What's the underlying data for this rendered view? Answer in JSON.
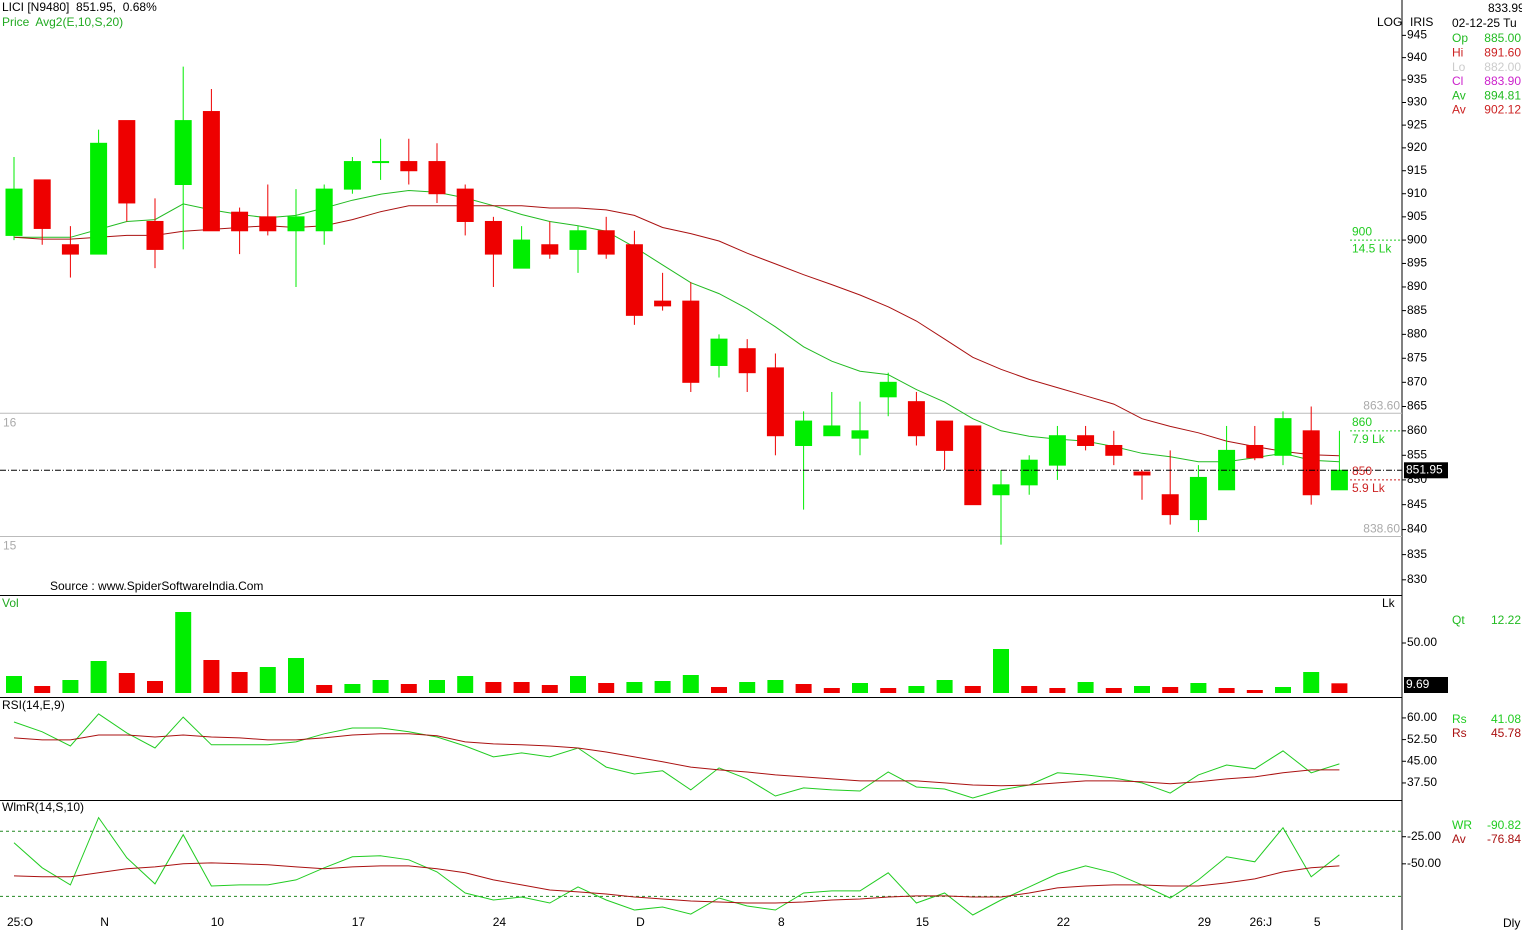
{
  "header": {
    "symbol_line": "LICI [N9480]  851.95,  0.68%",
    "indicator": "Price  Avg2(E,10,S,20)",
    "source": "Source : www.SpiderSoftwareIndia.Com",
    "scale_mode": "LOG",
    "feed": "IRIS",
    "cursor_price": "833.99",
    "cursor_date": "02-12-25 Tu",
    "period": "Dly"
  },
  "info": [
    {
      "label": "Op",
      "value": "885.00",
      "color": "#22bb22"
    },
    {
      "label": "Hi",
      "value": "891.60",
      "color": "#cc2222"
    },
    {
      "label": "Lo",
      "value": "882.00",
      "color": "#cccccc"
    },
    {
      "label": "Cl",
      "value": "883.90",
      "color": "#cc22cc"
    },
    {
      "label": "Av",
      "value": "894.81",
      "color": "#22bb22"
    },
    {
      "label": "Av",
      "value": "902.12",
      "color": "#cc2222"
    }
  ],
  "chart_data": [
    {
      "type": "candlestick",
      "log_scale": true,
      "ylim": [
        827,
        953
      ],
      "yticks": [
        830,
        835,
        840,
        845,
        850,
        855,
        860,
        865,
        870,
        875,
        880,
        885,
        890,
        895,
        900,
        905,
        910,
        915,
        920,
        925,
        930,
        935,
        940,
        945
      ],
      "categories": [
        "25:O",
        null,
        null,
        "N",
        null,
        null,
        null,
        "10",
        null,
        null,
        null,
        null,
        "17",
        null,
        null,
        null,
        null,
        "24",
        null,
        null,
        null,
        null,
        "D",
        null,
        null,
        null,
        null,
        "8",
        null,
        null,
        null,
        null,
        "15",
        null,
        null,
        null,
        null,
        "22",
        null,
        null,
        null,
        null,
        "29",
        null,
        "26:J",
        null,
        "5",
        null
      ],
      "open": [
        901,
        913,
        899,
        897,
        926,
        904,
        912,
        928,
        906,
        905,
        902,
        902,
        911,
        917,
        917,
        917,
        911,
        904,
        894,
        899,
        898,
        902,
        899,
        887,
        887,
        873.5,
        877,
        873,
        857,
        859,
        858.5,
        867,
        866,
        862,
        861,
        847,
        849,
        853,
        859,
        857,
        851.6,
        847,
        842,
        848,
        857,
        855,
        860,
        848
      ],
      "high": [
        918,
        913,
        903,
        924,
        926,
        909,
        938,
        933,
        907,
        912,
        911,
        912,
        918,
        922,
        922,
        921,
        912,
        905,
        903,
        904,
        903,
        905,
        902,
        893,
        891,
        880,
        879,
        876,
        864,
        868,
        866,
        872,
        868,
        862,
        861,
        852,
        855,
        861,
        861,
        860,
        852,
        856,
        853,
        861,
        861,
        864,
        865,
        860
      ],
      "low": [
        900,
        899,
        892,
        897,
        904,
        894,
        898,
        902,
        897,
        901,
        890,
        899,
        910,
        913,
        912,
        908,
        901,
        890,
        894,
        896,
        893,
        896,
        882,
        885,
        868,
        871,
        868,
        855,
        844,
        859,
        855,
        863,
        857,
        852,
        845,
        837,
        847,
        850,
        856,
        853,
        846,
        841,
        839.5,
        848,
        854,
        853,
        845,
        848
      ],
      "close": [
        911,
        902.5,
        897,
        921,
        908,
        898,
        926,
        902,
        902,
        902,
        905,
        911,
        917,
        917,
        915,
        910,
        904,
        897,
        900,
        897,
        902,
        897,
        884,
        886,
        870,
        879,
        872,
        859,
        862,
        861,
        860,
        870,
        859,
        856,
        845,
        849,
        854,
        859,
        857,
        855,
        851,
        843,
        850.5,
        856,
        854.5,
        862.5,
        847,
        851.95
      ],
      "up_color": "#00ee00",
      "down_color": "#ee0000",
      "series": [
        {
          "color": "#22bb22",
          "values": [
            900.6,
            900.6,
            900.6,
            902.3,
            904.0,
            904.4,
            907.8,
            906.5,
            905.5,
            904.8,
            905.3,
            906.9,
            908.6,
            909.9,
            910.7,
            910.3,
            909.1,
            907.4,
            905.5,
            904.0,
            903.1,
            901.9,
            898.5,
            894.7,
            890.9,
            888.6,
            885.4,
            881.6,
            877.4,
            874.4,
            872.3,
            871.6,
            868.5,
            865.9,
            862.5,
            860.0,
            858.9,
            858.3,
            857.9,
            856.8,
            855.4,
            854.7,
            853.7,
            853.7,
            854.5,
            855.4,
            854.0,
            853.7
          ]
        },
        {
          "color": "#aa1111",
          "values": [
            900.6,
            900.2,
            900.2,
            900.6,
            901.0,
            901.0,
            901.9,
            902.3,
            902.7,
            903.1,
            902.7,
            903.1,
            904.4,
            906.1,
            907.4,
            907.4,
            907.4,
            907.4,
            907.4,
            906.9,
            906.9,
            906.5,
            905.3,
            902.7,
            901.4,
            899.8,
            897.2,
            894.9,
            892.6,
            890.5,
            888.3,
            885.8,
            882.8,
            879.0,
            875.2,
            872.7,
            870.6,
            868.9,
            867.2,
            865.5,
            862.5,
            860.9,
            859.6,
            857.9,
            856.8,
            855.8,
            855.1,
            854.9
          ]
        }
      ],
      "levels": [
        {
          "value": 863.6,
          "label": "863.60",
          "left_label": "16"
        },
        {
          "value": 838.6,
          "label": "838.60",
          "left_label": "15"
        }
      ],
      "targets": [
        {
          "value": 900,
          "label": "900",
          "volume": "14.5 Lk",
          "color": "#22cc22"
        },
        {
          "value": 860,
          "label": "860",
          "volume": "7.9 Lk",
          "color": "#22cc22"
        },
        {
          "value": 850,
          "label": "850",
          "volume": "5.9 Lk",
          "color": "#cc2222"
        }
      ]
    },
    {
      "type": "bar",
      "title": "Vol",
      "unit": "Lk",
      "ylim": [
        0,
        96
      ],
      "yticks": [
        {
          "value": 50,
          "label": "50.00"
        }
      ],
      "readout_label": "Qt",
      "readout": 12.22,
      "values": [
        17,
        7,
        13,
        32,
        20,
        12,
        81,
        33,
        21,
        26,
        35,
        8,
        9,
        13,
        9,
        13,
        17,
        11,
        11,
        8,
        17,
        10,
        11,
        12,
        18,
        6,
        11,
        13,
        9,
        5,
        10,
        5,
        7,
        13,
        7,
        44,
        7,
        5,
        11,
        5,
        7,
        6,
        10,
        5,
        3,
        6,
        21,
        9.69
      ],
      "colors": [
        "#00ee00",
        "#ee0000",
        "#00ee00",
        "#00ee00",
        "#ee0000",
        "#ee0000",
        "#00ee00",
        "#ee0000",
        "#ee0000",
        "#00ee00",
        "#00ee00",
        "#ee0000",
        "#00ee00",
        "#00ee00",
        "#ee0000",
        "#00ee00",
        "#00ee00",
        "#ee0000",
        "#ee0000",
        "#ee0000",
        "#00ee00",
        "#ee0000",
        "#00ee00",
        "#00ee00",
        "#00ee00",
        "#ee0000",
        "#00ee00",
        "#00ee00",
        "#ee0000",
        "#ee0000",
        "#00ee00",
        "#ee0000",
        "#00ee00",
        "#00ee00",
        "#ee0000",
        "#00ee00",
        "#ee0000",
        "#ee0000",
        "#00ee00",
        "#ee0000",
        "#00ee00",
        "#ee0000",
        "#00ee00",
        "#ee0000",
        "#ee0000",
        "#00ee00",
        "#00ee00",
        "#ee0000"
      ]
    },
    {
      "type": "line",
      "title": "RSI(14,E,9)",
      "ylim": [
        31.6,
        66.2
      ],
      "yticks": [
        {
          "value": 60,
          "label": "60.00"
        },
        {
          "value": 52.5,
          "label": "52.50"
        },
        {
          "value": 45,
          "label": "45.00"
        },
        {
          "value": 37.5,
          "label": "37.50"
        }
      ],
      "series": [
        {
          "name": "Rs",
          "color": "#22cc22",
          "readout": 41.08,
          "values": [
            58.6,
            55.2,
            50.3,
            61.4,
            54.8,
            49.6,
            60.3,
            50.7,
            50.7,
            50.7,
            51.7,
            54.5,
            56.5,
            56.5,
            55.2,
            53.4,
            50.3,
            46.5,
            47.9,
            46.5,
            49.6,
            43.0,
            40.6,
            41.7,
            35.1,
            42.7,
            38.9,
            33.0,
            35.8,
            35.1,
            34.7,
            41.3,
            36.1,
            35.4,
            32.3,
            35.1,
            36.8,
            41.0,
            40.3,
            39.2,
            37.5,
            34.0,
            40.3,
            43.7,
            42.4,
            48.6,
            41.0,
            44.1
          ]
        },
        {
          "name": "Rs",
          "color": "#aa1111",
          "readout": 45.78,
          "values": [
            53.1,
            52.4,
            52.4,
            54.1,
            54.1,
            53.4,
            54.1,
            53.4,
            53.1,
            52.4,
            52.4,
            53.1,
            54.1,
            54.5,
            54.5,
            53.8,
            51.7,
            51.0,
            50.7,
            50.3,
            49.6,
            48.2,
            46.5,
            44.8,
            43.0,
            42.0,
            41.3,
            40.3,
            39.6,
            38.9,
            38.2,
            38.2,
            38.2,
            37.5,
            36.8,
            36.5,
            36.8,
            37.5,
            38.2,
            38.2,
            37.9,
            37.2,
            37.9,
            38.9,
            39.6,
            41.0,
            42.0,
            42.0
          ]
        }
      ]
    },
    {
      "type": "line",
      "title": "WlmR(14,S,10)",
      "ylim": [
        -111,
        7
      ],
      "yticks": [
        {
          "value": -25,
          "label": "-25.00"
        },
        {
          "value": -50,
          "label": "-50.00"
        }
      ],
      "levels": [
        -20,
        -80
      ],
      "series": [
        {
          "name": "WR",
          "color": "#22cc22",
          "readout": -90.82,
          "values": [
            -30.6,
            -53.7,
            -69.4,
            -7.4,
            -44.4,
            -68.5,
            -23.1,
            -70.4,
            -69.4,
            -69.4,
            -64.8,
            -53.7,
            -43.5,
            -42.6,
            -46.3,
            -57.4,
            -76.9,
            -83.3,
            -80.6,
            -86.1,
            -71.3,
            -83.3,
            -92.6,
            -89.8,
            -96.3,
            -81.5,
            -88.9,
            -92.6,
            -76.9,
            -75.0,
            -75.0,
            -58.3,
            -86.1,
            -76.9,
            -97.2,
            -83.3,
            -71.3,
            -59.3,
            -51.9,
            -58.3,
            -69.4,
            -81.5,
            -64.8,
            -43.5,
            -48.1,
            -16.7,
            -62.0,
            -41.7
          ]
        },
        {
          "name": "Av",
          "color": "#aa1111",
          "readout": -76.84,
          "values": [
            -61.1,
            -62.0,
            -62.0,
            -58.3,
            -54.6,
            -52.8,
            -50.0,
            -49.1,
            -50.0,
            -50.9,
            -52.8,
            -54.6,
            -52.8,
            -51.9,
            -51.9,
            -54.6,
            -58.3,
            -64.8,
            -69.4,
            -74.1,
            -75.9,
            -77.8,
            -80.6,
            -82.4,
            -84.3,
            -85.2,
            -86.1,
            -86.1,
            -85.2,
            -83.3,
            -82.4,
            -80.6,
            -79.6,
            -79.6,
            -80.6,
            -80.6,
            -76.9,
            -72.2,
            -70.4,
            -69.4,
            -69.4,
            -70.4,
            -70.4,
            -67.6,
            -63.9,
            -57.4,
            -53.7,
            -51.9
          ]
        }
      ]
    }
  ]
}
